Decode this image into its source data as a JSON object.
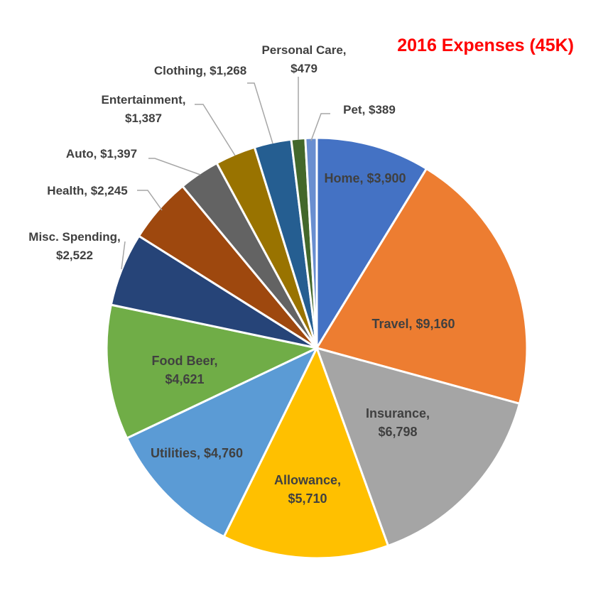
{
  "title": "2016 Expenses (45K)",
  "colors": {
    "title": "#ff0000",
    "label_text": "#404040",
    "leader_line": "#a6a6a6",
    "slice_border": "#ffffff"
  },
  "chart_data": {
    "type": "pie",
    "title": "2016 Expenses (45K)",
    "slices": [
      {
        "name": "Home",
        "value": 3900,
        "value_label": "$3,900",
        "color": "#4472c4",
        "label_lines": [
          "Home, $3,900"
        ]
      },
      {
        "name": "Travel",
        "value": 9160,
        "value_label": "$9,160",
        "color": "#ed7d31",
        "label_lines": [
          "Travel, $9,160"
        ]
      },
      {
        "name": "Insurance",
        "value": 6798,
        "value_label": "$6,798",
        "color": "#a5a5a5",
        "label_lines": [
          "Insurance,",
          "$6,798"
        ]
      },
      {
        "name": "Allowance",
        "value": 5710,
        "value_label": "$5,710",
        "color": "#ffc000",
        "label_lines": [
          "Allowance,",
          "$5,710"
        ]
      },
      {
        "name": "Utilities",
        "value": 4760,
        "value_label": "$4,760",
        "color": "#5b9bd5",
        "label_lines": [
          "Utilities, $4,760"
        ]
      },
      {
        "name": "Food Beer",
        "value": 4621,
        "value_label": "$4,621",
        "color": "#70ad47",
        "label_lines": [
          "Food Beer,",
          "$4,621"
        ]
      },
      {
        "name": "Misc. Spending",
        "value": 2522,
        "value_label": "$2,522",
        "color": "#264478",
        "label_lines": [
          "Misc. Spending,",
          "$2,522"
        ]
      },
      {
        "name": "Health",
        "value": 2245,
        "value_label": "$2,245",
        "color": "#9e480e",
        "label_lines": [
          "Health, $2,245"
        ]
      },
      {
        "name": "Auto",
        "value": 1397,
        "value_label": "$1,397",
        "color": "#636363",
        "label_lines": [
          "Auto, $1,397"
        ]
      },
      {
        "name": "Entertainment",
        "value": 1387,
        "value_label": "$1,387",
        "color": "#997300",
        "label_lines": [
          "Entertainment,",
          "$1,387"
        ]
      },
      {
        "name": "Clothing",
        "value": 1268,
        "value_label": "$1,268",
        "color": "#255e91",
        "label_lines": [
          "Clothing, $1,268"
        ]
      },
      {
        "name": "Personal Care",
        "value": 479,
        "value_label": "$479",
        "color": "#43682b",
        "label_lines": [
          "Personal Care,",
          "$479"
        ]
      },
      {
        "name": "Pet",
        "value": 389,
        "value_label": "$389",
        "color": "#698ed0",
        "label_lines": [
          "Pet, $389"
        ]
      }
    ],
    "start_angle_deg": 0,
    "direction": "clockwise",
    "legend": "none"
  }
}
